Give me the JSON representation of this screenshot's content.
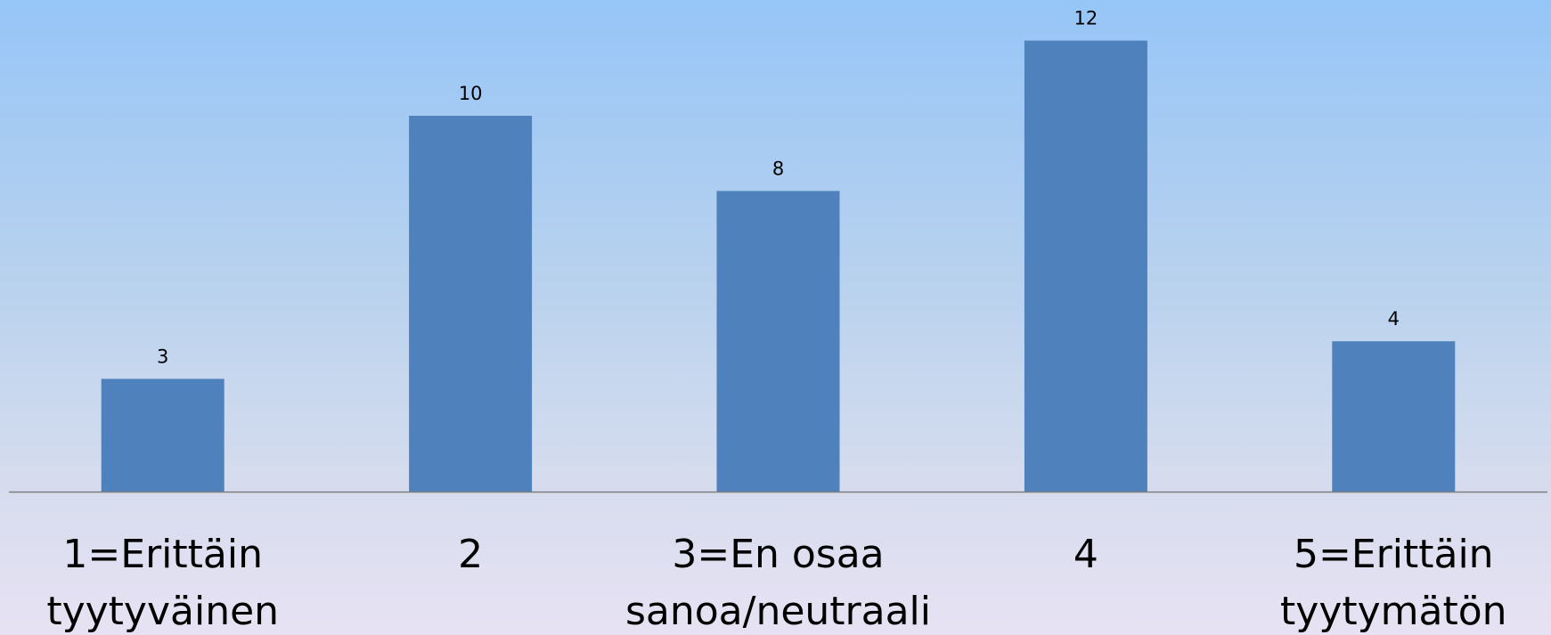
{
  "chart_data": {
    "type": "bar",
    "categories": [
      [
        "1=Erittäin",
        "tyytyväinen"
      ],
      [
        "2"
      ],
      [
        "3=En osaa",
        "sanoa/neutraali"
      ],
      [
        "4"
      ],
      [
        "5=Erittäin",
        "tyytymätön"
      ]
    ],
    "values": [
      3,
      10,
      8,
      12,
      4
    ],
    "data_labels": [
      "3",
      "10",
      "8",
      "12",
      "4"
    ],
    "grid": false,
    "legend": "none",
    "colors": {
      "bar": "#4f81bd",
      "axis": "#7f7f7f"
    }
  }
}
